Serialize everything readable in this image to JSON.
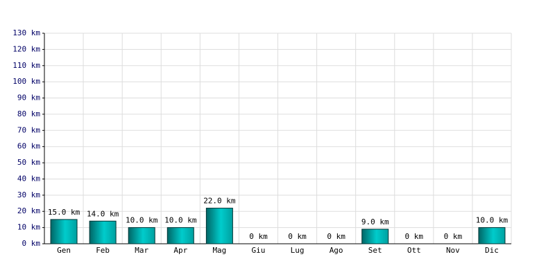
{
  "chart_data": {
    "type": "bar",
    "categories": [
      "Gen",
      "Feb",
      "Mar",
      "Apr",
      "Mag",
      "Giu",
      "Lug",
      "Ago",
      "Set",
      "Ott",
      "Nov",
      "Dic"
    ],
    "values": [
      15,
      14,
      10,
      10,
      22,
      0,
      0,
      0,
      9,
      0,
      0,
      10
    ],
    "value_labels": [
      "15.0 km",
      "14.0 km",
      "10.0 km",
      "10.0 km",
      "22.0 km",
      "0 km",
      "0 km",
      "0 km",
      "9.0 km",
      "0 km",
      "0 km",
      "10.0 km"
    ],
    "color": "#00cccc",
    "ylim": [
      0,
      130
    ],
    "yticks": [
      {
        "value": 0,
        "label": "0 km"
      },
      {
        "value": 10,
        "label": "10 km"
      },
      {
        "value": 20,
        "label": "20 km"
      },
      {
        "value": 30,
        "label": "30 km"
      },
      {
        "value": 40,
        "label": "40 km"
      },
      {
        "value": 50,
        "label": "50 km"
      },
      {
        "value": 60,
        "label": "60 km"
      },
      {
        "value": 70,
        "label": "70 km"
      },
      {
        "value": 80,
        "label": "80 km"
      },
      {
        "value": 90,
        "label": "90 km"
      },
      {
        "value": 100,
        "label": "100 km"
      },
      {
        "value": 110,
        "label": "110 km"
      },
      {
        "value": 120,
        "label": "120 km"
      },
      {
        "value": 130,
        "label": "130 km"
      }
    ],
    "grid": true
  }
}
